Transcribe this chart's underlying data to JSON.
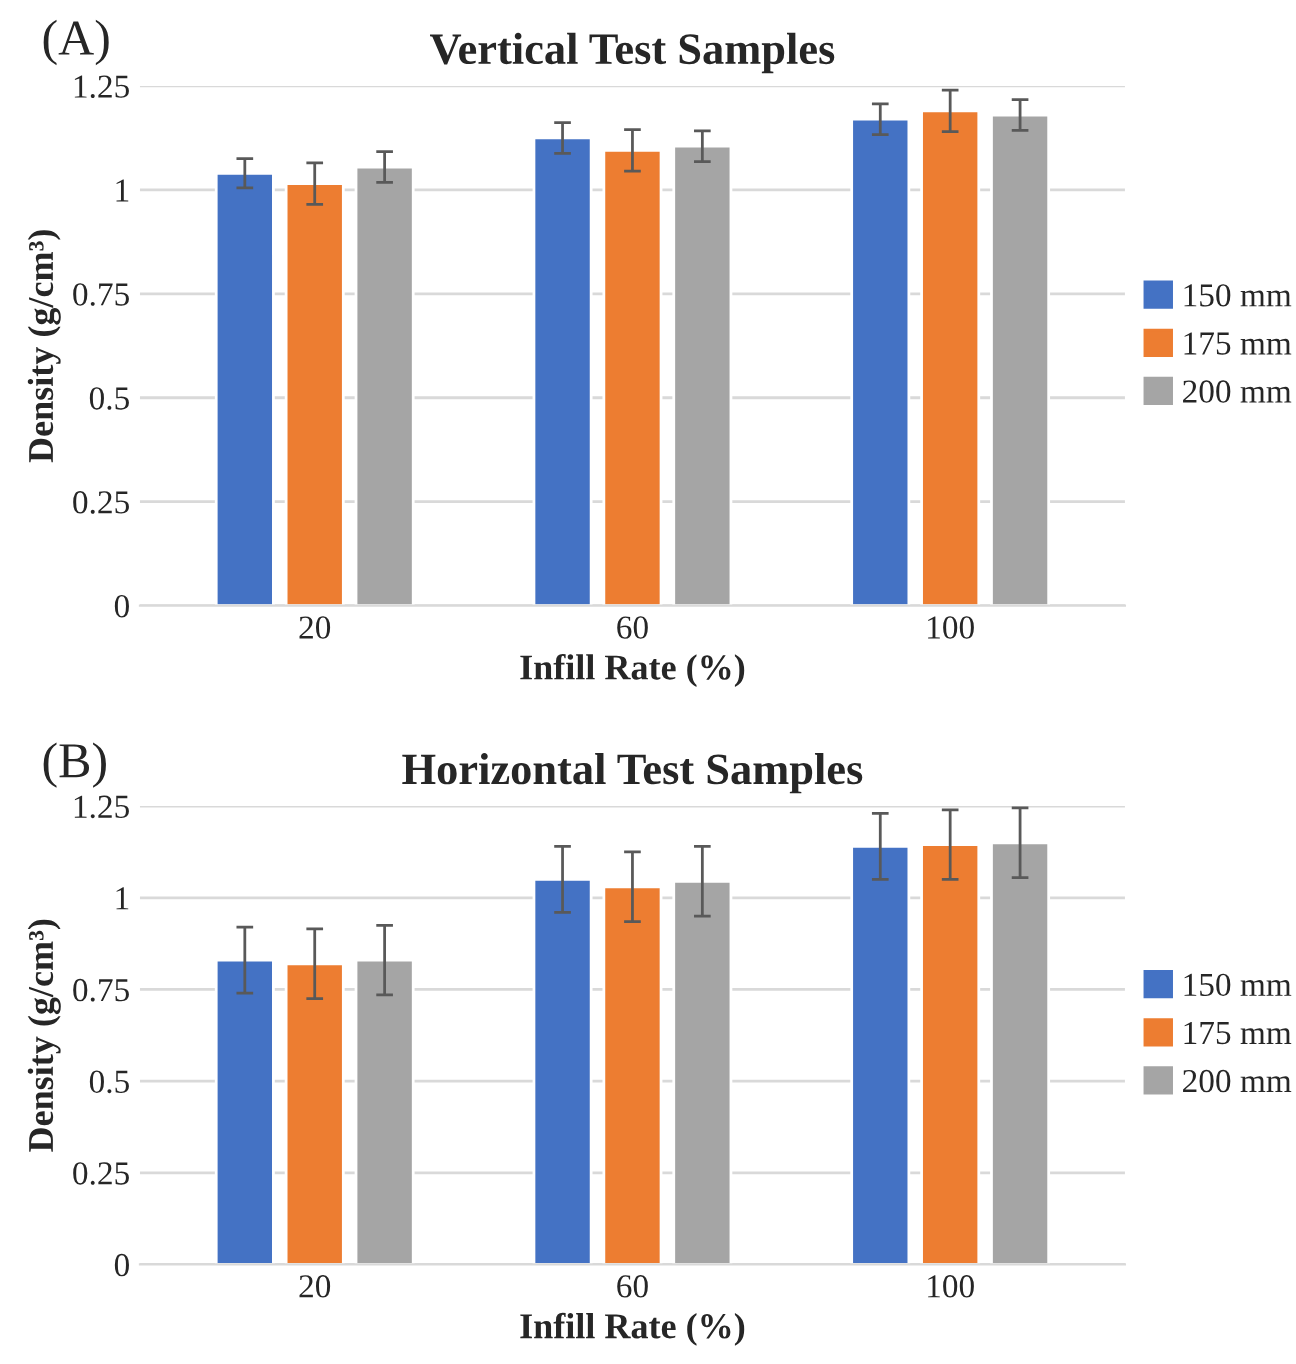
{
  "chart_data": [
    {
      "type": "bar",
      "title": "Vertical Test Samples",
      "xlabel": "Infill Rate (%)",
      "ylabel": "Density (g/cm³)",
      "annotations": [
        "(A)"
      ],
      "categories": [
        "20",
        "60",
        "100"
      ],
      "series": [
        {
          "name": "150 mm",
          "color": "#4472c4",
          "values": [
            1.04,
            1.125,
            1.17
          ],
          "errors": [
            0.035,
            0.037,
            0.037
          ]
        },
        {
          "name": "175 mm",
          "color": "#ed7d31",
          "values": [
            1.015,
            1.095,
            1.19
          ],
          "errors": [
            0.05,
            0.05,
            0.05
          ]
        },
        {
          "name": "200 mm",
          "color": "#a5a5a5",
          "values": [
            1.055,
            1.105,
            1.18
          ],
          "errors": [
            0.037,
            0.037,
            0.037
          ]
        }
      ],
      "ylim": [
        0,
        1.25
      ],
      "yticks": [
        0,
        0.25,
        0.5,
        0.75,
        1,
        1.25
      ],
      "grid": "y",
      "legend": "right"
    },
    {
      "type": "bar",
      "title": "Horizontal Test Samples",
      "xlabel": "Infill Rate (%)",
      "ylabel": "Density (g/cm³)",
      "annotations": [
        "(B)"
      ],
      "categories": [
        "20",
        "60",
        "100"
      ],
      "series": [
        {
          "name": "150 mm",
          "color": "#4472c4",
          "values": [
            0.83,
            1.05,
            1.14
          ],
          "errors": [
            0.09,
            0.09,
            0.09
          ]
        },
        {
          "name": "175 mm",
          "color": "#ed7d31",
          "values": [
            0.82,
            1.03,
            1.145
          ],
          "errors": [
            0.095,
            0.095,
            0.095
          ]
        },
        {
          "name": "200 mm",
          "color": "#a5a5a5",
          "values": [
            0.83,
            1.045,
            1.15
          ],
          "errors": [
            0.095,
            0.095,
            0.095
          ]
        }
      ],
      "ylim": [
        0,
        1.25
      ],
      "yticks": [
        0,
        0.25,
        0.5,
        0.75,
        1,
        1.25
      ],
      "grid": "y",
      "legend": "right"
    }
  ]
}
